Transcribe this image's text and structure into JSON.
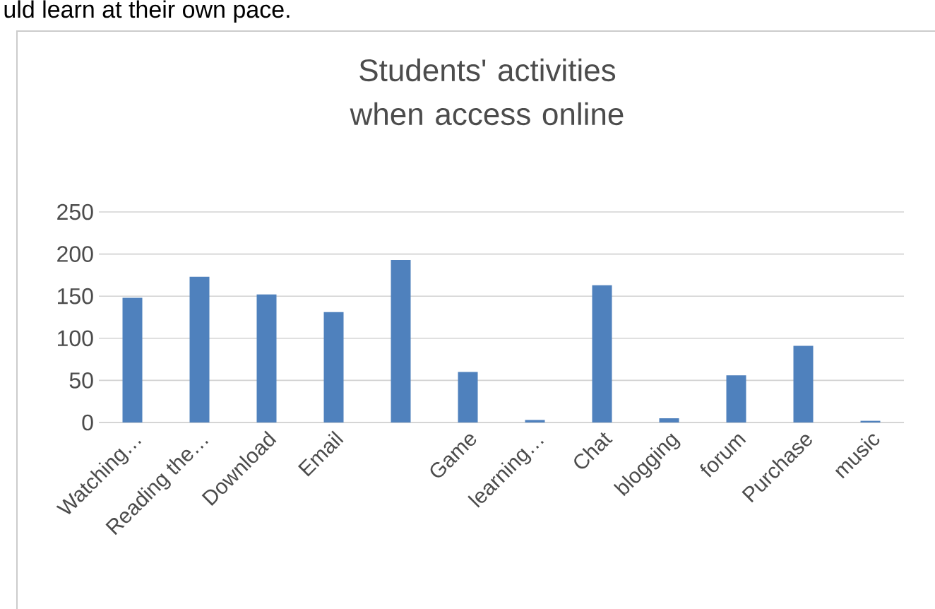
{
  "chart_data": {
    "type": "bar",
    "title": "Students' activities when access online",
    "annotations": [
      "uld learn at their own pace."
    ],
    "categories": [
      "Watching…",
      "Reading the…",
      "Download",
      "Email",
      null,
      "Game",
      "learning…",
      "Chat",
      "blogging",
      "forum",
      "Purchase",
      "music"
    ],
    "values": [
      148,
      173,
      152,
      131,
      193,
      60,
      3,
      163,
      5,
      56,
      91,
      2
    ],
    "color": "#4f81bd",
    "ylim": [
      0,
      250
    ],
    "yticks": [
      0,
      50,
      100,
      150,
      200,
      250
    ],
    "grid": "y"
  }
}
